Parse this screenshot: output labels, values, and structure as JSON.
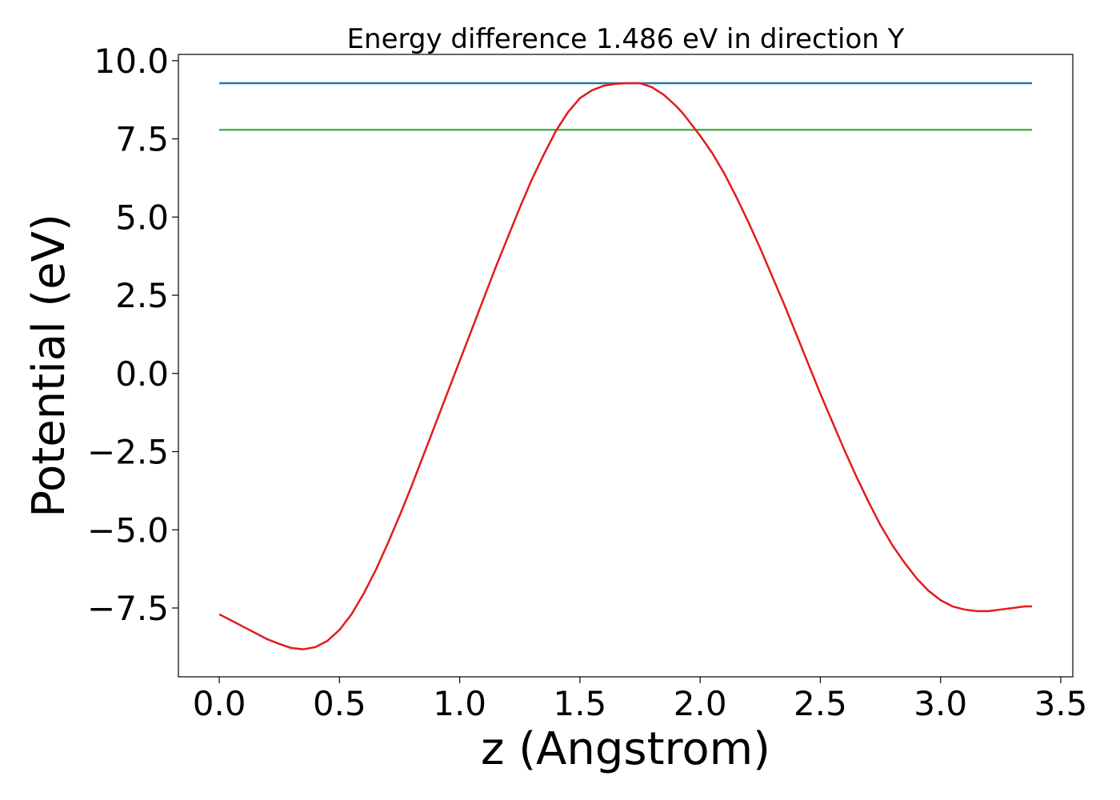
{
  "chart_data": {
    "type": "line",
    "title": "Energy difference 1.486 eV in direction Y",
    "xlabel": "z (Angstrom)",
    "ylabel": "Potential (eV)",
    "xlim": [
      -0.17,
      3.55
    ],
    "ylim": [
      -9.7,
      10.2
    ],
    "xticks": [
      0.0,
      0.5,
      1.0,
      1.5,
      2.0,
      2.5,
      3.0,
      3.5
    ],
    "xtick_labels": [
      "0.0",
      "0.5",
      "1.0",
      "1.5",
      "2.0",
      "2.5",
      "3.0",
      "3.5"
    ],
    "yticks": [
      10.0,
      7.5,
      5.0,
      2.5,
      0.0,
      -2.5,
      -5.0,
      -7.5
    ],
    "ytick_labels": [
      "10.0",
      "7.5",
      "5.0",
      "2.5",
      "0.0",
      "−2.5",
      "−5.0",
      "−7.5"
    ],
    "grid": false,
    "series": [
      {
        "name": "potential",
        "color": "#e41a1c",
        "x": [
          0.0,
          0.05,
          0.1,
          0.15,
          0.2,
          0.25,
          0.3,
          0.35,
          0.4,
          0.45,
          0.5,
          0.55,
          0.6,
          0.65,
          0.7,
          0.75,
          0.8,
          0.85,
          0.9,
          0.95,
          1.0,
          1.05,
          1.1,
          1.15,
          1.2,
          1.25,
          1.3,
          1.35,
          1.4,
          1.45,
          1.5,
          1.55,
          1.6,
          1.65,
          1.7,
          1.75,
          1.8,
          1.85,
          1.9,
          1.93,
          1.97,
          2.0,
          2.05,
          2.1,
          2.15,
          2.2,
          2.25,
          2.3,
          2.35,
          2.4,
          2.45,
          2.5,
          2.55,
          2.6,
          2.65,
          2.7,
          2.75,
          2.8,
          2.85,
          2.9,
          2.95,
          3.0,
          3.05,
          3.1,
          3.15,
          3.2,
          3.25,
          3.3,
          3.35,
          3.38
        ],
        "y": [
          -7.7,
          -7.9,
          -8.1,
          -8.3,
          -8.5,
          -8.65,
          -8.78,
          -8.82,
          -8.75,
          -8.55,
          -8.2,
          -7.7,
          -7.05,
          -6.3,
          -5.45,
          -4.55,
          -3.6,
          -2.6,
          -1.6,
          -0.6,
          0.4,
          1.4,
          2.4,
          3.4,
          4.35,
          5.3,
          6.2,
          7.0,
          7.75,
          8.35,
          8.8,
          9.05,
          9.2,
          9.26,
          9.28,
          9.28,
          9.15,
          8.9,
          8.55,
          8.3,
          7.9,
          7.6,
          7.05,
          6.4,
          5.65,
          4.85,
          4.0,
          3.1,
          2.2,
          1.25,
          0.3,
          -0.65,
          -1.55,
          -2.45,
          -3.3,
          -4.1,
          -4.85,
          -5.5,
          -6.05,
          -6.55,
          -6.95,
          -7.25,
          -7.45,
          -7.55,
          -7.6,
          -7.6,
          -7.55,
          -7.5,
          -7.45,
          -7.45
        ]
      },
      {
        "name": "upper level",
        "color": "#1f77b4",
        "x": [
          0.0,
          3.38
        ],
        "y": [
          9.28,
          9.28
        ]
      },
      {
        "name": "lower level",
        "color": "#4daf4a",
        "x": [
          0.0,
          3.38
        ],
        "y": [
          7.79,
          7.79
        ]
      }
    ]
  }
}
